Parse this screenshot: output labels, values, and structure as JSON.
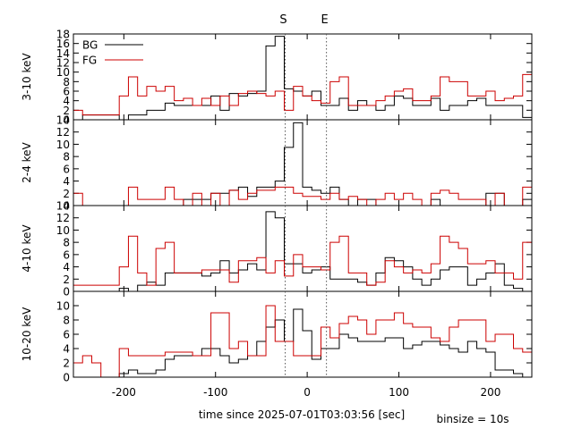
{
  "chart_data": {
    "type": "line",
    "title": "",
    "xlabel": "time since 2025-07-01T03:03:56 [sec]",
    "binsize_label": "binsize = 10s",
    "xlim": [
      -255,
      245
    ],
    "xticks": [
      -200,
      -100,
      0,
      100,
      200
    ],
    "markers": [
      {
        "label": "S",
        "x": -24
      },
      {
        "label": "E",
        "x": 21
      }
    ],
    "legend": {
      "placement": "top-left",
      "entries": [
        {
          "name": "BG",
          "color": "#000000"
        },
        {
          "name": "FG",
          "color": "#cc0000"
        }
      ]
    },
    "panels": [
      {
        "ylabel": "3-10 keV",
        "ylim": [
          0,
          18
        ],
        "yticks": [
          0,
          2,
          4,
          6,
          8,
          10,
          12,
          14,
          16,
          18
        ],
        "bins_start": -255,
        "bin_width": 10,
        "series": [
          {
            "name": "BG",
            "color": "#000000",
            "values": [
              0,
              1,
              1,
              1,
              1,
              0,
              1,
              1,
              2,
              2,
              3.5,
              3,
              3,
              3,
              3,
              5,
              2,
              5.5,
              5,
              5.5,
              6,
              15.5,
              17.5,
              6.5,
              6,
              5,
              6,
              3,
              3,
              4.5,
              2,
              4,
              3,
              2,
              3,
              5,
              4.5,
              3,
              3,
              4.5,
              2,
              3,
              3,
              4,
              4.5,
              3,
              3,
              3,
              3,
              0.5
            ]
          },
          {
            "name": "FG",
            "color": "#cc0000",
            "values": [
              2,
              1,
              1,
              1,
              1,
              5,
              9,
              5,
              7,
              6,
              7,
              4,
              4.5,
              3,
              4.5,
              3,
              5,
              3,
              5.5,
              6,
              5.5,
              5,
              6,
              2,
              7,
              5,
              4,
              3.5,
              8,
              9,
              3,
              3,
              3,
              4,
              5,
              6,
              6.5,
              4,
              4,
              5,
              9,
              8,
              8,
              5,
              5,
              6,
              4,
              4.5,
              5,
              9.5
            ]
          }
        ]
      },
      {
        "ylabel": "2-4 keV",
        "ylim": [
          0,
          14
        ],
        "yticks": [
          0,
          2,
          4,
          6,
          8,
          10,
          12,
          14
        ],
        "bins_start": -255,
        "bin_width": 10,
        "series": [
          {
            "name": "BG",
            "color": "#000000",
            "values": [
              0,
              0,
              0,
              0,
              0,
              0,
              0,
              0,
              0,
              0,
              0,
              0,
              1,
              1,
              1,
              2,
              2,
              2.5,
              3,
              1.5,
              3,
              3,
              4,
              9.5,
              13.5,
              3,
              2.5,
              2,
              3,
              1,
              0,
              1,
              1,
              0,
              0,
              0,
              0,
              0,
              0,
              1,
              0,
              0,
              0,
              0,
              0,
              2,
              2,
              0,
              0,
              1
            ]
          },
          {
            "name": "FG",
            "color": "#cc0000",
            "values": [
              2,
              0,
              0,
              0,
              0,
              0,
              3,
              1,
              1,
              1,
              3,
              1,
              0,
              2,
              0,
              2,
              0,
              2.5,
              1,
              2,
              2.5,
              2.5,
              3,
              3,
              2,
              1.5,
              1.5,
              1,
              2,
              1,
              1.5,
              1,
              0,
              1,
              2,
              1,
              2,
              1,
              0,
              2,
              2.5,
              2,
              1,
              1,
              1,
              0,
              2,
              0,
              0,
              3
            ]
          }
        ]
      },
      {
        "ylabel": "4-10 keV",
        "ylim": [
          0,
          14
        ],
        "yticks": [
          0,
          2,
          4,
          6,
          8,
          10,
          12,
          14
        ],
        "bins_start": -255,
        "bin_width": 10,
        "series": [
          {
            "name": "BG",
            "color": "#000000",
            "values": [
              0,
              0,
              0,
              0,
              0,
              0.5,
              0,
              1,
              1.5,
              1,
              3,
              3,
              3,
              3,
              2.5,
              3,
              5,
              3,
              3.5,
              4.5,
              3.5,
              13,
              12,
              4.5,
              4.5,
              3,
              3.5,
              4,
              2,
              2,
              2,
              1.5,
              1,
              3,
              5.5,
              5,
              4,
              2,
              1,
              2,
              3.5,
              4,
              4,
              1,
              2,
              3,
              4.5,
              1,
              0.5,
              0
            ]
          },
          {
            "name": "FG",
            "color": "#cc0000",
            "values": [
              1,
              1,
              1,
              1,
              1,
              4,
              9,
              3,
              1,
              7,
              8,
              3,
              3,
              3,
              3.5,
              3.5,
              3.5,
              1.5,
              5,
              5,
              5.5,
              3,
              5,
              2.5,
              6,
              4,
              4,
              3.5,
              8,
              9,
              3,
              3,
              1,
              1.5,
              5,
              4,
              3,
              3.5,
              3,
              4.5,
              9,
              8,
              7,
              4.5,
              4.5,
              5,
              3,
              3,
              2,
              8
            ]
          }
        ]
      },
      {
        "ylabel": "10-20 keV",
        "ylim": [
          0,
          12
        ],
        "yticks": [
          0,
          2,
          4,
          6,
          8,
          10
        ],
        "bins_start": -255,
        "bin_width": 10,
        "series": [
          {
            "name": "BG",
            "color": "#000000",
            "values": [
              0,
              0,
              0,
              0,
              0,
              0.5,
              1,
              0.5,
              0.5,
              1,
              2.5,
              3,
              3,
              3,
              4,
              4,
              3,
              2,
              2.5,
              3,
              5,
              7,
              8,
              5,
              9.5,
              6.5,
              2.5,
              4,
              4,
              6,
              5.5,
              5,
              5,
              5,
              5.5,
              5.5,
              4,
              4.5,
              5,
              5,
              4.5,
              4,
              3.5,
              5,
              4,
              3.5,
              1,
              1,
              0.5,
              0
            ]
          },
          {
            "name": "FG",
            "color": "#cc0000",
            "values": [
              2,
              3,
              2,
              0,
              0,
              4,
              3,
              3,
              3,
              3,
              3.5,
              3.5,
              3.5,
              3,
              3,
              9,
              9,
              4,
              5,
              3,
              3,
              10,
              5,
              5,
              3,
              3,
              3,
              7,
              5.5,
              7.5,
              8.5,
              8,
              6,
              8,
              8,
              9,
              7.5,
              7,
              7,
              5.5,
              5,
              7,
              8,
              8,
              8,
              5,
              6,
              6,
              4,
              3.5
            ]
          }
        ]
      }
    ]
  }
}
